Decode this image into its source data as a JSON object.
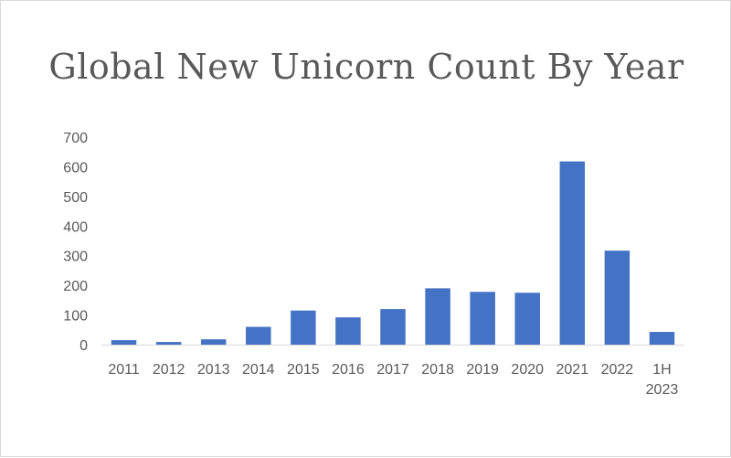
{
  "chart_data": {
    "type": "bar",
    "title": "Global New Unicorn Count By Year",
    "xlabel": "",
    "ylabel": "",
    "categories": [
      "2011",
      "2012",
      "2013",
      "2014",
      "2015",
      "2016",
      "2017",
      "2018",
      "2019",
      "2020",
      "2021",
      "2022",
      "1H 2023"
    ],
    "series": [
      {
        "values": [
          15,
          9,
          18,
          60,
          115,
          92,
          120,
          190,
          178,
          175,
          618,
          317,
          43
        ]
      }
    ],
    "ylim": [
      0,
      700
    ],
    "yticks": [
      0,
      100,
      200,
      300,
      400,
      500,
      600,
      700
    ],
    "grid": false,
    "legend": "none",
    "colors": {
      "bar": "#4472C4",
      "axis": "#d9d9d9",
      "text": "#595959"
    }
  }
}
